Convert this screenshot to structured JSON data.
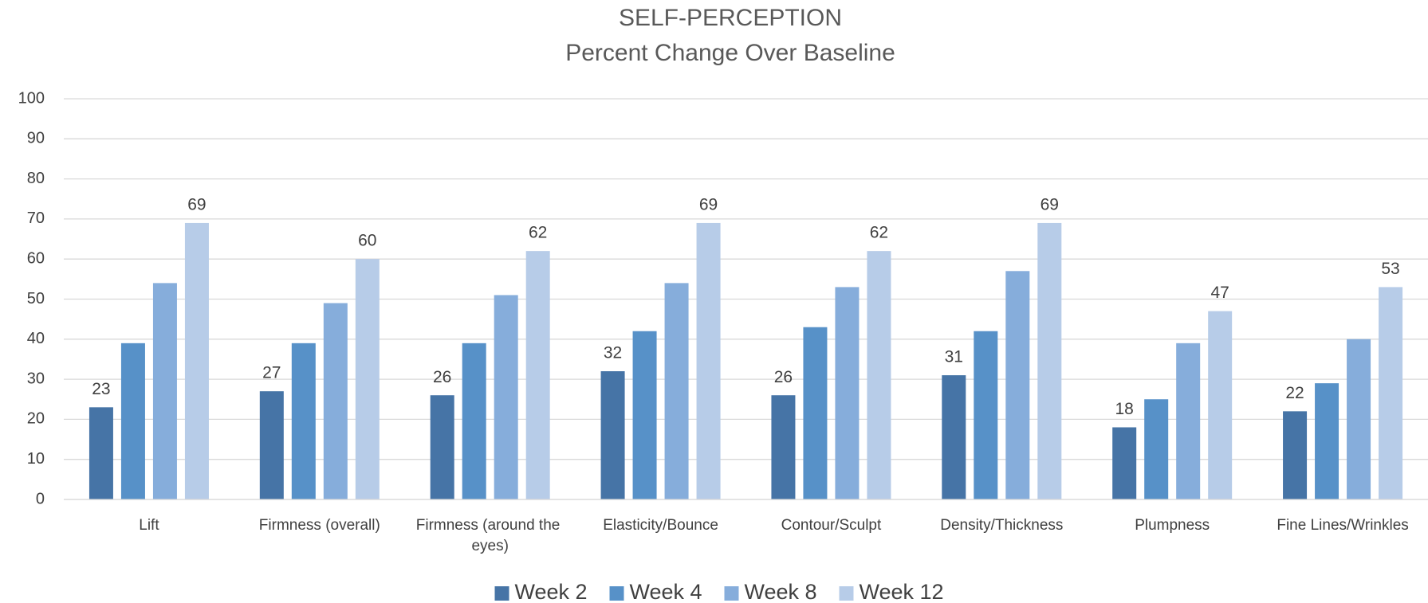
{
  "chart_data": {
    "type": "bar",
    "title": "SELF-PERCEPTION",
    "subtitle": "Percent Change Over Baseline",
    "categories": [
      "Lift",
      "Firmness (overall)",
      "Firmness (around the eyes)",
      "Elasticity/Bounce",
      "Contour/Sculpt",
      "Density/Thickness",
      "Plumpness",
      "Fine Lines/Wrinkles"
    ],
    "series": [
      {
        "name": "Week 2",
        "color": "#4674a6",
        "show_labels": true,
        "values": [
          23,
          27,
          26,
          32,
          26,
          31,
          18,
          22
        ]
      },
      {
        "name": "Week 4",
        "color": "#5791c8",
        "show_labels": false,
        "values": [
          39,
          39,
          39,
          42,
          43,
          42,
          25,
          29
        ]
      },
      {
        "name": "Week 8",
        "color": "#86addb",
        "show_labels": false,
        "values": [
          54,
          49,
          51,
          54,
          53,
          57,
          39,
          40
        ]
      },
      {
        "name": "Week 12",
        "color": "#b7cce8",
        "show_labels": true,
        "values": [
          69,
          60,
          62,
          69,
          62,
          69,
          47,
          53
        ]
      }
    ],
    "ylim": [
      0,
      100
    ],
    "yticks": [
      0,
      10,
      20,
      30,
      40,
      50,
      60,
      70,
      80,
      90,
      100
    ],
    "grid": true,
    "legend": "bottom"
  }
}
